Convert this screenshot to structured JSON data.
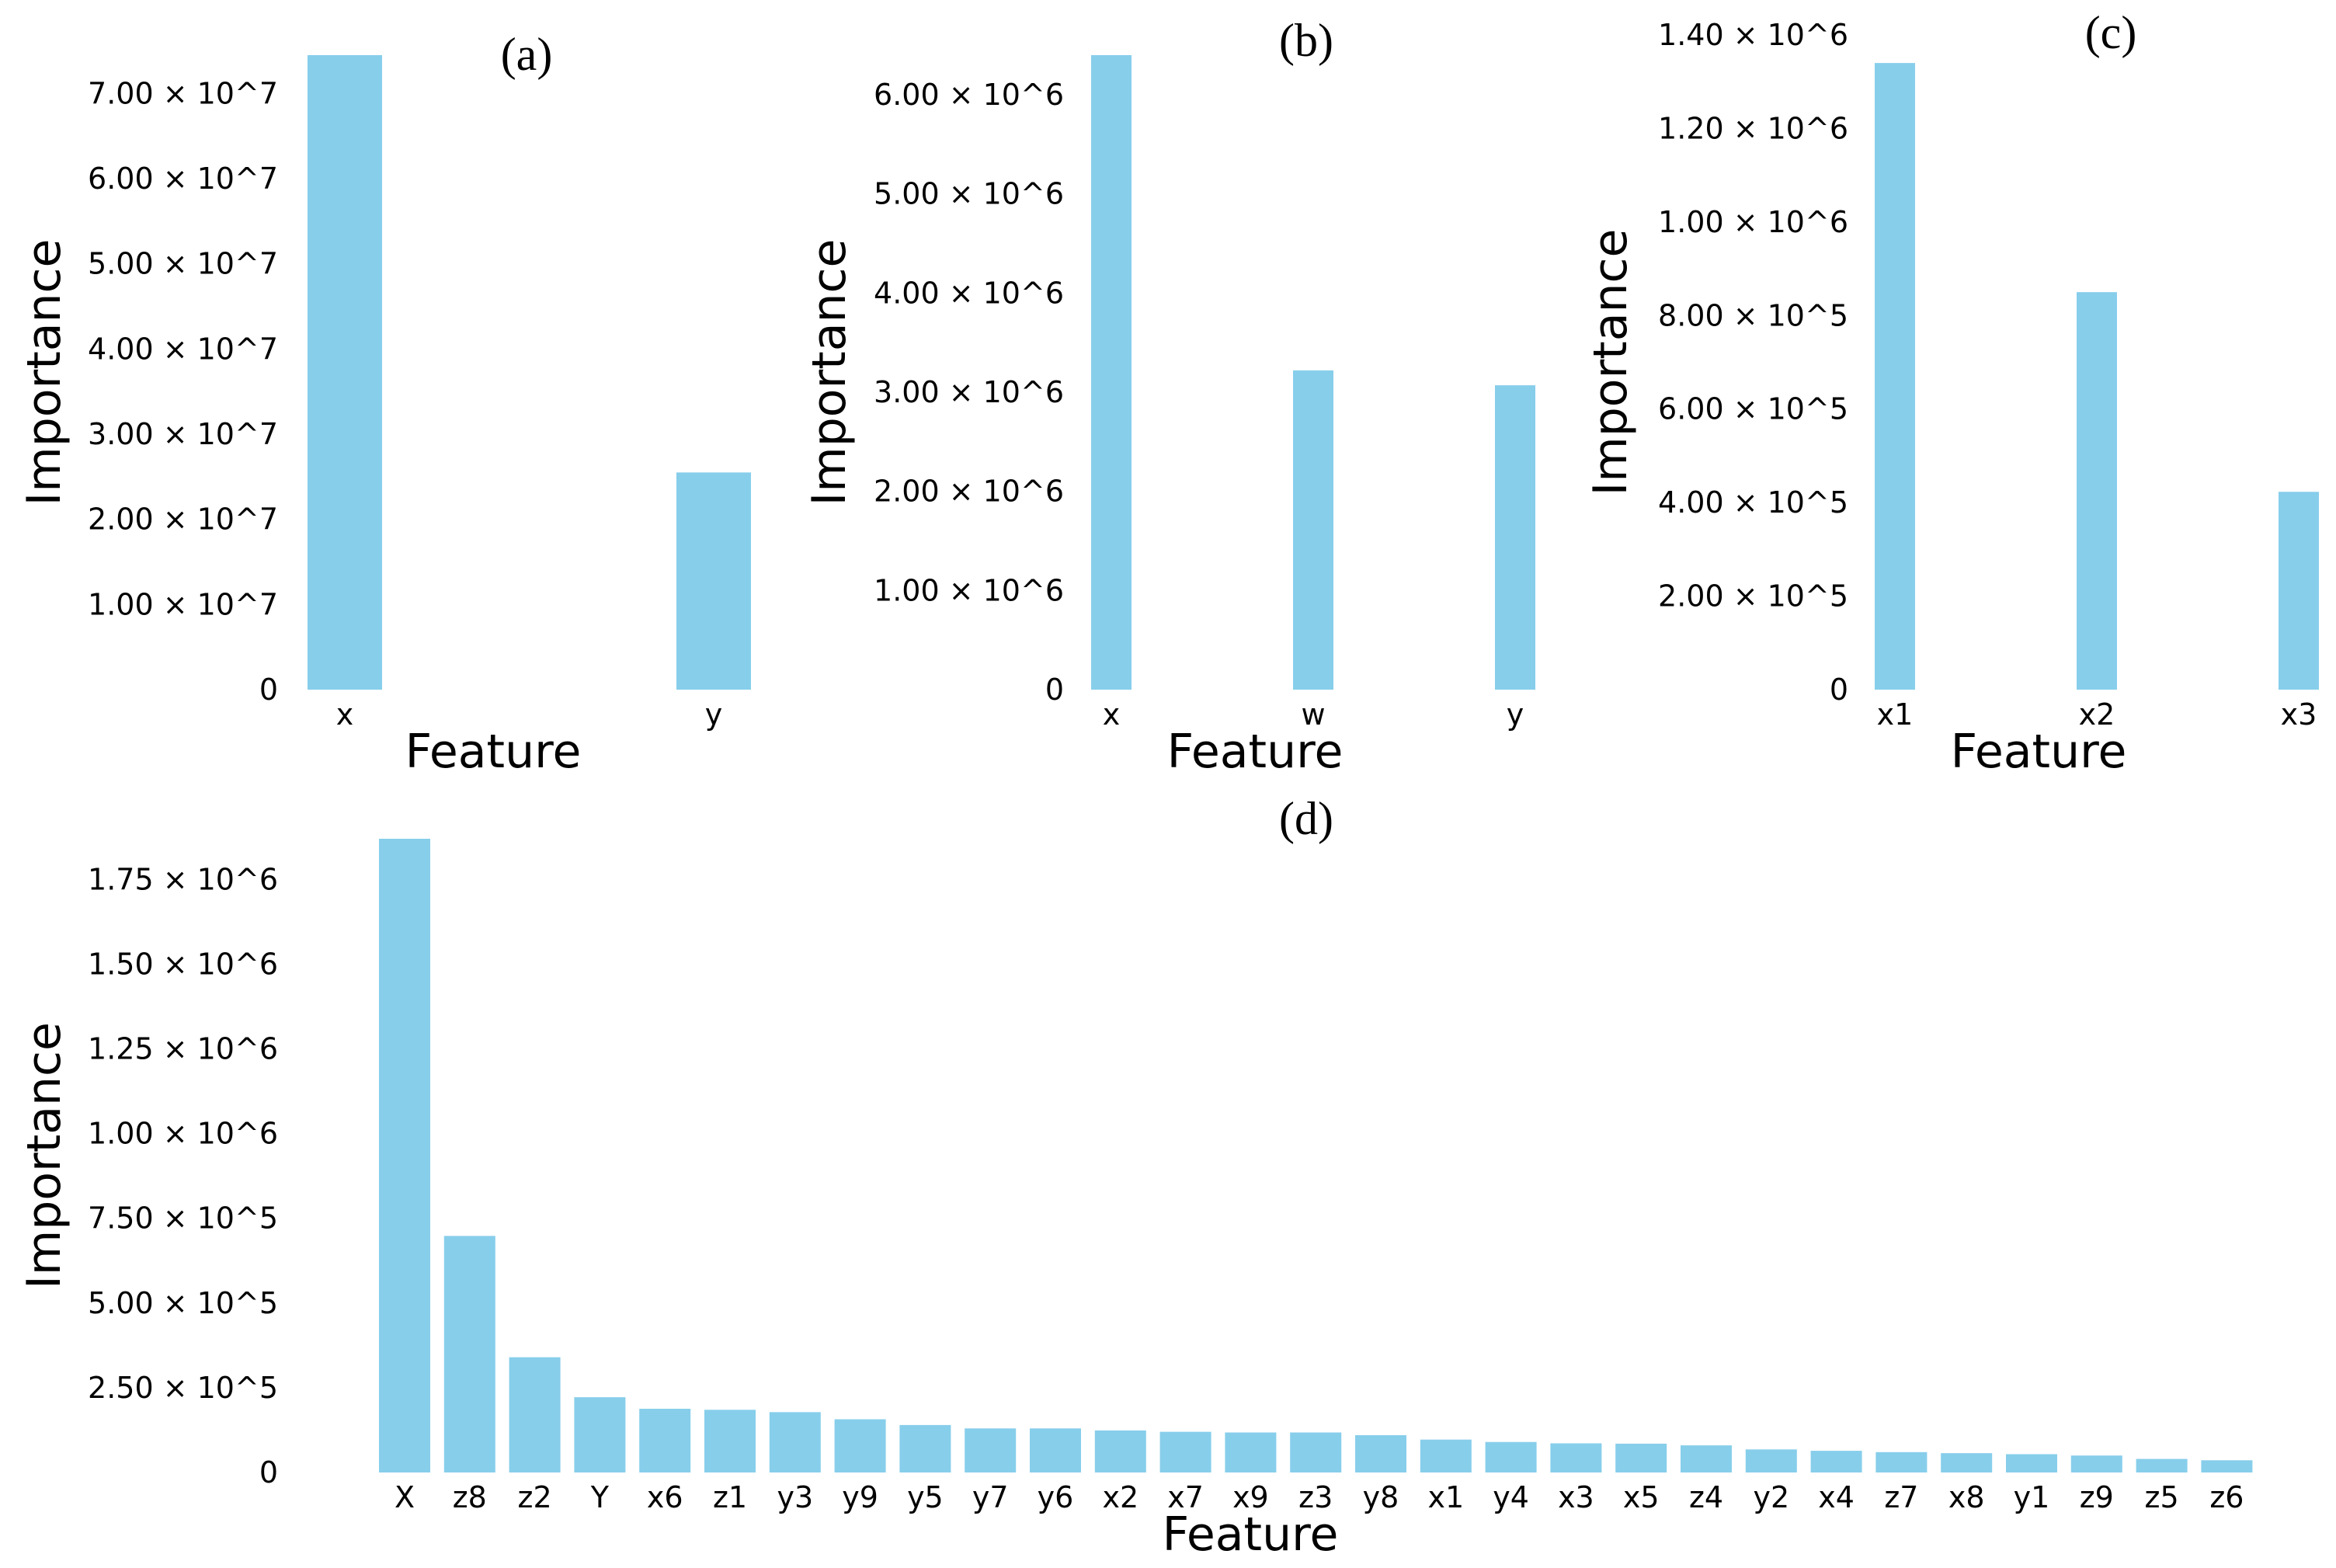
{
  "colors": {
    "bar": "#87ceeb",
    "text": "#000000",
    "background": "#ffffff"
  },
  "chart_data": [
    {
      "panel": "(a)",
      "type": "bar",
      "xlabel": "Feature",
      "ylabel": "Importance",
      "categories": [
        "x",
        "y"
      ],
      "values": [
        74500000,
        25500000
      ],
      "ylim": [
        0,
        74500000
      ],
      "yticks": [
        0,
        10000000,
        20000000,
        30000000,
        40000000,
        50000000,
        60000000,
        70000000
      ],
      "ytick_labels": [
        "0",
        "1.00 × 10^7",
        "2.00 × 10^7",
        "3.00 × 10^7",
        "4.00 × 10^7",
        "5.00 × 10^7",
        "6.00 × 10^7",
        "7.00 × 10^7"
      ],
      "grid": false
    },
    {
      "panel": "(b)",
      "type": "bar",
      "xlabel": "Feature",
      "ylabel": "Importance",
      "categories": [
        "x",
        "w",
        "y"
      ],
      "values": [
        6400000,
        3220000,
        3070000
      ],
      "ylim": [
        0,
        6400000
      ],
      "yticks": [
        0,
        1000000,
        2000000,
        3000000,
        4000000,
        5000000,
        6000000
      ],
      "ytick_labels": [
        "0",
        "1.00 × 10^6",
        "2.00 × 10^6",
        "3.00 × 10^6",
        "4.00 × 10^6",
        "5.00 × 10^6",
        "6.00 × 10^6"
      ],
      "grid": false
    },
    {
      "panel": "(c)",
      "type": "bar",
      "xlabel": "Feature",
      "ylabel": "Importance",
      "categories": [
        "x1",
        "x2",
        "x3"
      ],
      "values": [
        1340000,
        850000,
        423000
      ],
      "ylim": [
        0,
        1400000
      ],
      "yticks": [
        0,
        200000,
        400000,
        600000,
        800000,
        1000000,
        1200000,
        1400000
      ],
      "ytick_labels": [
        "0",
        "2.00 × 10^5",
        "4.00 × 10^5",
        "6.00 × 10^5",
        "8.00 × 10^5",
        "1.00 × 10^6",
        "1.20 × 10^6",
        "1.40 × 10^6"
      ],
      "grid": false
    },
    {
      "panel": "(d)",
      "type": "bar",
      "xlabel": "Feature",
      "ylabel": "Importance",
      "categories": [
        "X",
        "z8",
        "z2",
        "Y",
        "x6",
        "z1",
        "y3",
        "y9",
        "y5",
        "y7",
        "y6",
        "x2",
        "x7",
        "x9",
        "z3",
        "y8",
        "x1",
        "y4",
        "x3",
        "x5",
        "z4",
        "y2",
        "x4",
        "z7",
        "x8",
        "y1",
        "z9",
        "z5",
        "z6"
      ],
      "values": [
        1870000,
        698000,
        340000,
        222000,
        188000,
        185000,
        178000,
        157000,
        140000,
        130000,
        130000,
        124000,
        120000,
        118000,
        118000,
        110000,
        97000,
        90000,
        86000,
        85000,
        80000,
        68000,
        64000,
        60000,
        57000,
        54000,
        50000,
        40000,
        36000
      ],
      "ylim": [
        0,
        1870000
      ],
      "yticks": [
        0,
        250000,
        500000,
        750000,
        1000000,
        1250000,
        1500000,
        1750000
      ],
      "ytick_labels": [
        "0",
        "2.50 × 10^5",
        "5.00 × 10^5",
        "7.50 × 10^5",
        "1.00 × 10^6",
        "1.25 × 10^6",
        "1.50 × 10^6",
        "1.75 × 10^6"
      ],
      "grid": false
    }
  ]
}
